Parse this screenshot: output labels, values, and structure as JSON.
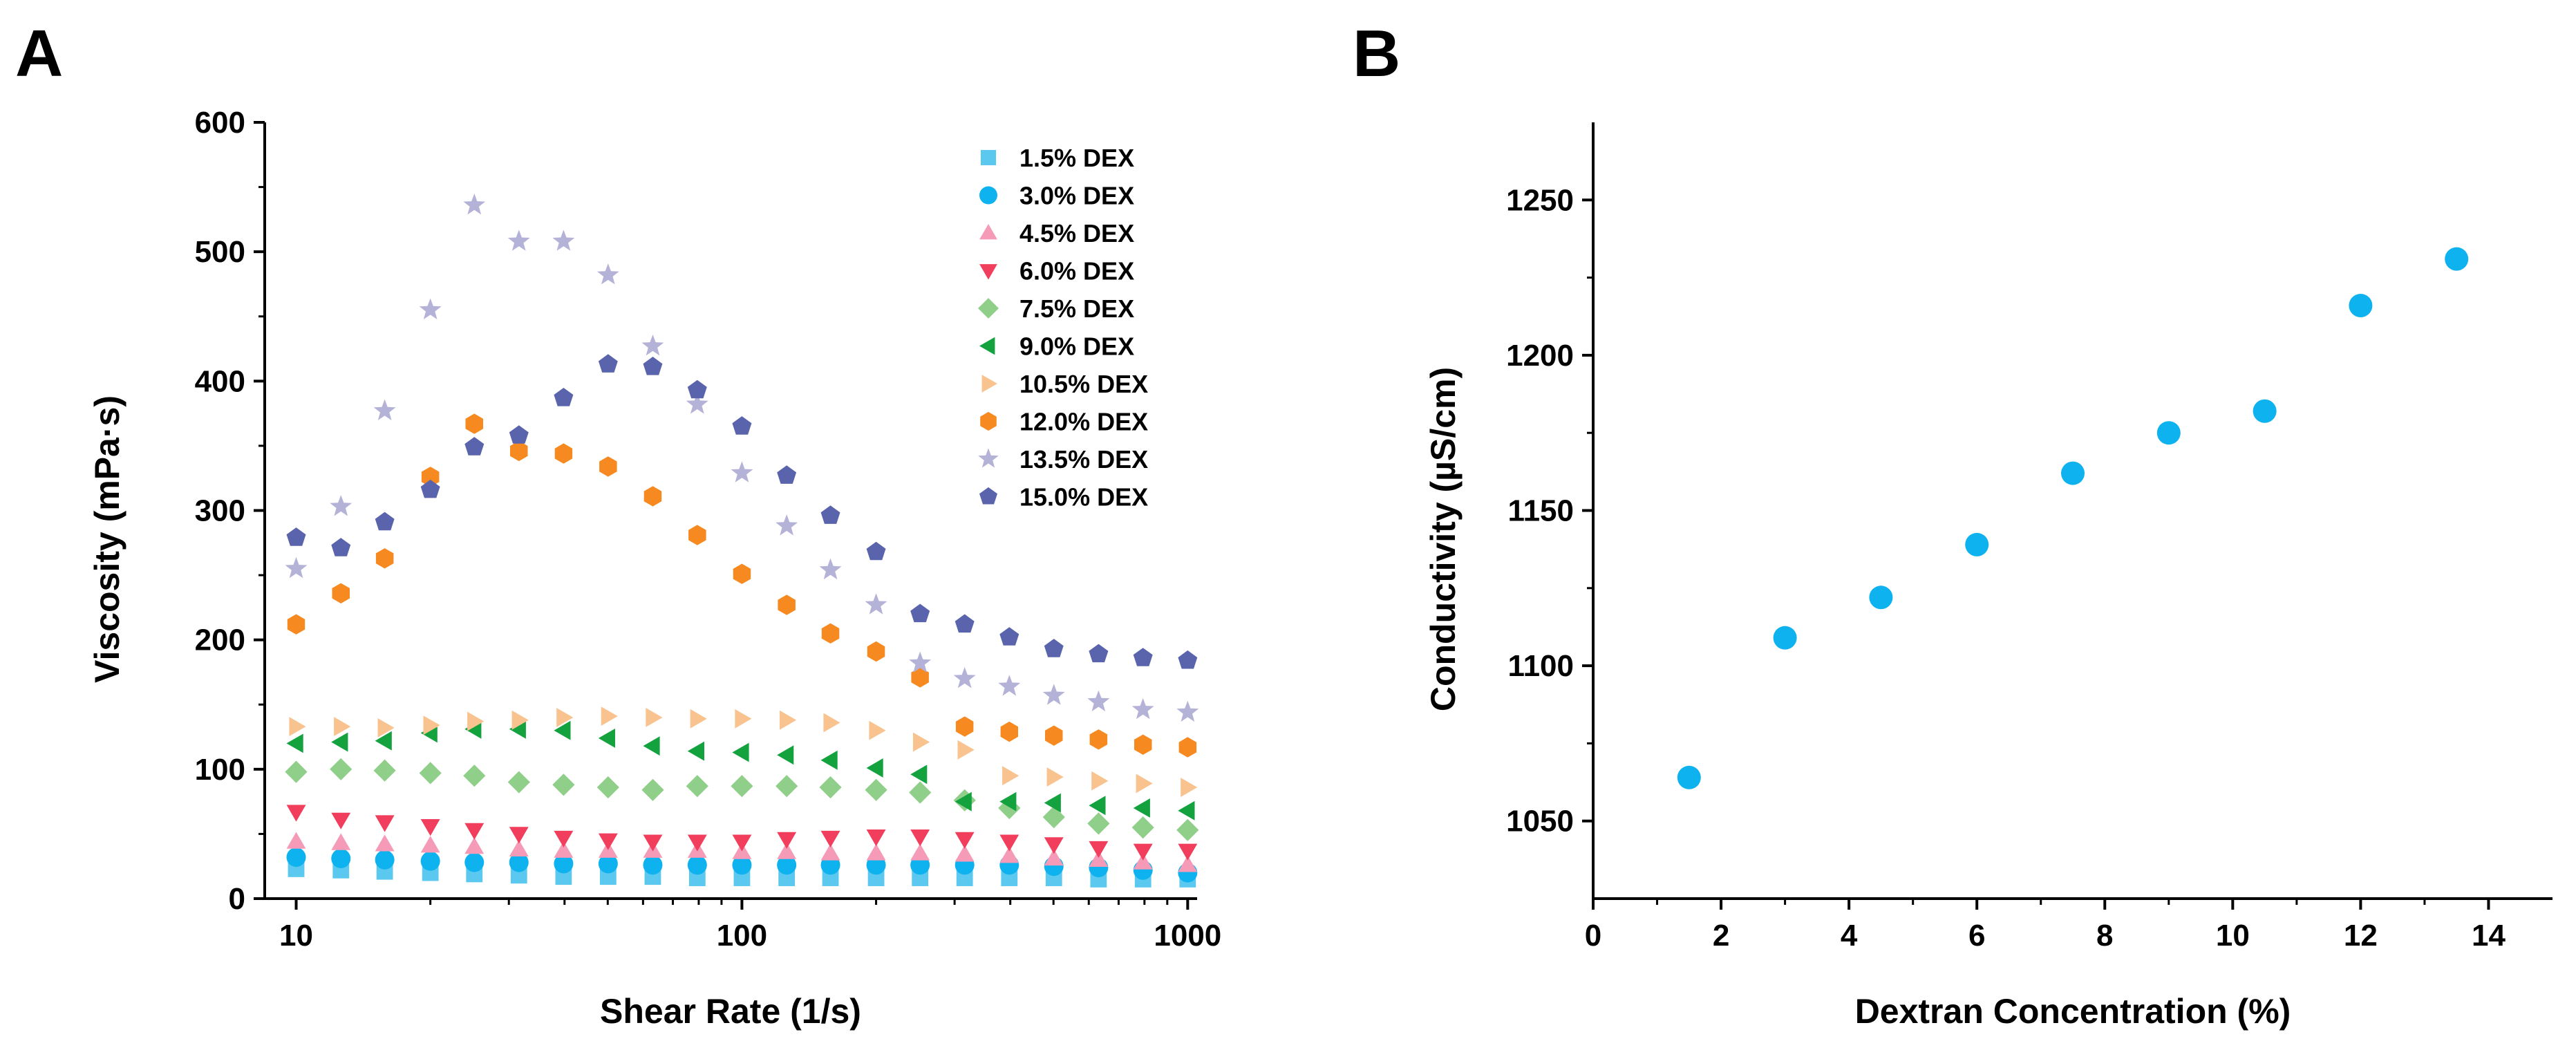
{
  "chart_data": [
    {
      "panel": "A",
      "type": "scatter",
      "xscale": "log",
      "xlabel": "Shear Rate (1/s)",
      "ylabel": "Viscosity (mPa·s)",
      "xlim": [
        8.5,
        1050
      ],
      "ylim": [
        0,
        600
      ],
      "xticks": [
        10,
        100,
        1000
      ],
      "yticks": [
        0,
        100,
        200,
        300,
        400,
        500,
        600
      ],
      "legend_position": "top-right",
      "x": [
        10,
        12.6,
        15.8,
        20,
        25.1,
        31.6,
        39.8,
        50.1,
        63.1,
        79.4,
        100,
        126,
        158,
        200,
        251,
        316,
        398,
        501,
        631,
        794,
        1000
      ],
      "series": [
        {
          "name": "1.5% DEX",
          "marker": "square",
          "color": "#5bc8ef",
          "values": [
            23,
            22,
            21,
            20,
            19,
            18,
            17,
            17,
            17,
            16,
            16,
            16,
            16,
            16,
            16,
            16,
            16,
            16,
            15,
            15,
            15
          ]
        },
        {
          "name": "3.0% DEX",
          "marker": "circle",
          "color": "#0db2ee",
          "values": [
            32,
            31,
            30,
            29,
            28,
            28,
            27,
            27,
            26,
            26,
            26,
            26,
            26,
            26,
            26,
            26,
            26,
            25,
            24,
            22,
            20
          ]
        },
        {
          "name": "4.5% DEX",
          "marker": "triangle-up",
          "color": "#f59bb8",
          "values": [
            44,
            43,
            42,
            41,
            40,
            38,
            37,
            37,
            37,
            37,
            36,
            36,
            35,
            35,
            35,
            34,
            33,
            31,
            30,
            28,
            26
          ]
        },
        {
          "name": "6.0% DEX",
          "marker": "triangle-down",
          "color": "#f03e5c",
          "values": [
            67,
            61,
            59,
            56,
            53,
            50,
            47,
            45,
            44,
            44,
            44,
            46,
            47,
            48,
            48,
            46,
            44,
            42,
            39,
            37,
            37
          ]
        },
        {
          "name": "7.5% DEX",
          "marker": "diamond",
          "color": "#90cf8a",
          "values": [
            98,
            100,
            99,
            97,
            95,
            90,
            88,
            86,
            84,
            87,
            87,
            87,
            86,
            84,
            82,
            76,
            70,
            63,
            58,
            55,
            53
          ]
        },
        {
          "name": "9.0% DEX",
          "marker": "triangle-left",
          "color": "#14a23f",
          "values": [
            120,
            121,
            122,
            128,
            131,
            131,
            130,
            124,
            118,
            114,
            113,
            111,
            107,
            101,
            96,
            75,
            75,
            74,
            72,
            70,
            68
          ]
        },
        {
          "name": "10.5% DEX",
          "marker": "triangle-right",
          "color": "#f9c38f",
          "values": [
            133,
            133,
            132,
            134,
            137,
            138,
            140,
            141,
            140,
            139,
            139,
            138,
            136,
            130,
            121,
            115,
            95,
            94,
            91,
            89,
            86
          ]
        },
        {
          "name": "12.0% DEX",
          "marker": "hexagon",
          "color": "#f6891f",
          "values": [
            212,
            236,
            263,
            326,
            367,
            346,
            344,
            334,
            311,
            281,
            251,
            227,
            205,
            191,
            171,
            133,
            129,
            126,
            123,
            119,
            117
          ]
        },
        {
          "name": "13.5% DEX",
          "marker": "star",
          "color": "#b5b2d8",
          "values": [
            255,
            303,
            377,
            455,
            536,
            508,
            508,
            482,
            427,
            382,
            329,
            288,
            254,
            227,
            182,
            170,
            164,
            157,
            152,
            146,
            144
          ]
        },
        {
          "name": "15.0% DEX",
          "marker": "pentagon",
          "color": "#5a64ac",
          "values": [
            279,
            271,
            291,
            316,
            349,
            358,
            387,
            413,
            411,
            393,
            365,
            327,
            296,
            268,
            220,
            212,
            202,
            193,
            189,
            186,
            184
          ]
        }
      ]
    },
    {
      "panel": "B",
      "type": "scatter",
      "xlabel": "Dextran Concentration (%)",
      "ylabel": "Conductivity (µS/cm)",
      "xlim": [
        0,
        15
      ],
      "ylim": [
        1025,
        1275
      ],
      "xticks": [
        0,
        2,
        4,
        6,
        8,
        10,
        12,
        14
      ],
      "yticks": [
        1050,
        1100,
        1150,
        1200,
        1250
      ],
      "marker": "circle",
      "color": "#0db2ee",
      "x": [
        1.5,
        3.0,
        4.5,
        6.0,
        7.5,
        9.0,
        10.5,
        12.0,
        13.5
      ],
      "values": [
        1064,
        1109,
        1122,
        1139,
        1162,
        1175,
        1182,
        1216,
        1231
      ]
    }
  ]
}
